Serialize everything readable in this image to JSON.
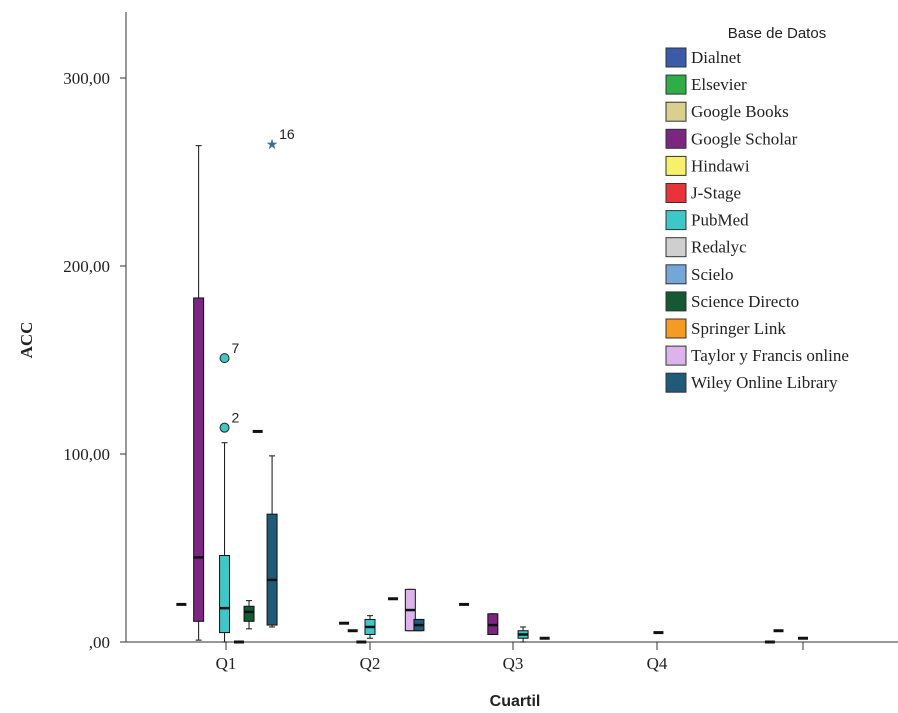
{
  "chart_data": {
    "type": "boxplot",
    "xlabel": "Cuartil",
    "ylabel": "ACC",
    "ylim": [
      0,
      335
    ],
    "yticks": [
      {
        "value": 0,
        "label": ",00"
      },
      {
        "value": 100,
        "label": "100,00"
      },
      {
        "value": 200,
        "label": "200,00"
      },
      {
        "value": 300,
        "label": "300,00"
      }
    ],
    "categories": [
      "Q1",
      "Q2",
      "Q3",
      "Q4",
      ""
    ],
    "legend": {
      "title": "Base de Datos",
      "position": "top-right",
      "items": [
        {
          "name": "Dialnet",
          "color": "#3b5aa8"
        },
        {
          "name": "Elsevier",
          "color": "#2fae47"
        },
        {
          "name": "Google Books",
          "color": "#d9cf8f"
        },
        {
          "name": "Google Scholar",
          "color": "#7a2781"
        },
        {
          "name": "Hindawi",
          "color": "#f7f06a"
        },
        {
          "name": "J-Stage",
          "color": "#e8333b"
        },
        {
          "name": "PubMed",
          "color": "#3fc6c6"
        },
        {
          "name": "Redalyc",
          "color": "#cfcfcf"
        },
        {
          "name": "Scielo",
          "color": "#74a6d8"
        },
        {
          "name": "Science Directo",
          "color": "#135a32"
        },
        {
          "name": "Springer Link",
          "color": "#f39b23"
        },
        {
          "name": "Taylor y Francis online",
          "color": "#dbb4ee"
        },
        {
          "name": "Wiley Online Library",
          "color": "#1f5b79"
        }
      ]
    },
    "boxes": [
      {
        "category": "Q1",
        "series": "Dialnet",
        "offset": -0.31,
        "min": 20,
        "q1": 20,
        "median": 20,
        "q3": 20,
        "max": 20
      },
      {
        "category": "Q1",
        "series": "Google Scholar",
        "offset": -0.19,
        "min": 1,
        "q1": 11,
        "median": 45,
        "q3": 183,
        "max": 264
      },
      {
        "category": "Q1",
        "series": "PubMed",
        "offset": -0.01,
        "min": 0,
        "q1": 5,
        "median": 18,
        "q3": 46,
        "max": 106
      },
      {
        "category": "Q1",
        "series": "Redalyc",
        "offset": 0.09,
        "min": 0,
        "q1": 0,
        "median": 0,
        "q3": 0,
        "max": 0
      },
      {
        "category": "Q1",
        "series": "Science Directo",
        "offset": 0.16,
        "min": 7,
        "q1": 11,
        "median": 16,
        "q3": 19,
        "max": 22
      },
      {
        "category": "Q1",
        "series": "Springer Link",
        "offset": 0.22,
        "min": 112,
        "q1": 112,
        "median": 112,
        "q3": 112,
        "max": 112
      },
      {
        "category": "Q1",
        "series": "Wiley Online Library",
        "offset": 0.32,
        "min": 8,
        "q1": 9,
        "median": 33,
        "q3": 68,
        "max": 99
      },
      {
        "category": "Q2",
        "series": "Dialnet",
        "offset": -0.18,
        "min": 10,
        "q1": 10,
        "median": 10,
        "q3": 10,
        "max": 10
      },
      {
        "category": "Q2",
        "series": "Google Scholar",
        "offset": -0.12,
        "min": 6,
        "q1": 6,
        "median": 6,
        "q3": 6,
        "max": 6
      },
      {
        "category": "Q2",
        "series": "Redalyc",
        "offset": -0.06,
        "min": 0,
        "q1": 0,
        "median": 0,
        "q3": 0,
        "max": 0
      },
      {
        "category": "Q2",
        "series": "PubMed",
        "offset": 0.0,
        "min": 2,
        "q1": 4,
        "median": 8,
        "q3": 12,
        "max": 14
      },
      {
        "category": "Q2",
        "series": "Springer Link",
        "offset": 0.16,
        "min": 23,
        "q1": 23,
        "median": 23,
        "q3": 23,
        "max": 23
      },
      {
        "category": "Q2",
        "series": "Taylor y Francis online",
        "offset": 0.28,
        "min": 6,
        "q1": 6,
        "median": 17,
        "q3": 28,
        "max": 28
      },
      {
        "category": "Q2",
        "series": "Wiley Online Library",
        "offset": 0.34,
        "min": 6,
        "q1": 6,
        "median": 9,
        "q3": 12,
        "max": 12
      },
      {
        "category": "Q3",
        "series": "Dialnet",
        "offset": -0.34,
        "min": 20,
        "q1": 20,
        "median": 20,
        "q3": 20,
        "max": 20
      },
      {
        "category": "Q3",
        "series": "Google Scholar",
        "offset": -0.14,
        "min": 4,
        "q1": 4,
        "median": 9,
        "q3": 15,
        "max": 15
      },
      {
        "category": "Q3",
        "series": "PubMed",
        "offset": 0.07,
        "min": 0,
        "q1": 2,
        "median": 4,
        "q3": 6,
        "max": 8
      },
      {
        "category": "Q3",
        "series": "Wiley Online Library",
        "offset": 0.22,
        "min": 2,
        "q1": 2,
        "median": 2,
        "q3": 2,
        "max": 2
      },
      {
        "category": "Q4",
        "series": "Wiley Online Library",
        "offset": 0.01,
        "min": 5,
        "q1": 5,
        "median": 5,
        "q3": 5,
        "max": 5
      },
      {
        "category": "",
        "series": "Dialnet",
        "offset": -0.23,
        "min": 0,
        "q1": 0,
        "median": 0,
        "q3": 0,
        "max": 0
      },
      {
        "category": "",
        "series": "Google Scholar",
        "offset": -0.17,
        "min": 6,
        "q1": 6,
        "median": 6,
        "q3": 6,
        "max": 6
      },
      {
        "category": "",
        "series": "Wiley Online Library",
        "offset": 0.0,
        "min": 2,
        "q1": 2,
        "median": 2,
        "q3": 2,
        "max": 2
      }
    ],
    "outliers": [
      {
        "category": "Q1",
        "series": "PubMed",
        "offset": -0.01,
        "value": 151,
        "label": "7",
        "marker": "circle"
      },
      {
        "category": "Q1",
        "series": "PubMed",
        "offset": -0.01,
        "value": 114,
        "label": "2",
        "marker": "circle"
      },
      {
        "category": "Q1",
        "series": "Scielo",
        "offset": 0.32,
        "value": 265,
        "label": "16",
        "marker": "star"
      }
    ]
  }
}
